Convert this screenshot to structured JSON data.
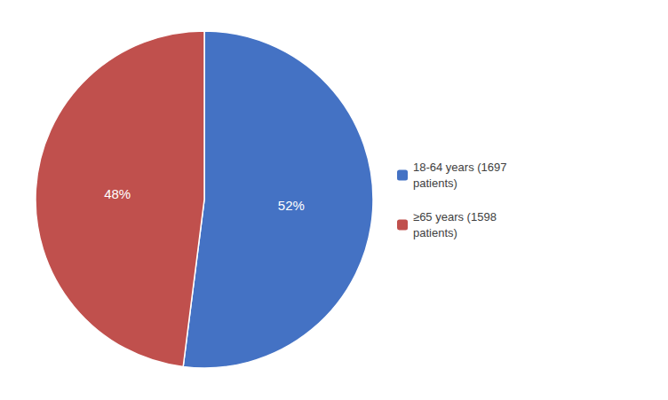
{
  "chart_data": {
    "type": "pie",
    "categories": [
      "18-64 years (1697\npatients)",
      "≥65 years (1598\npatients)"
    ],
    "values": [
      52,
      48
    ],
    "value_labels": [
      "52%",
      "48%"
    ],
    "colors": [
      "#4472C4",
      "#C0504D"
    ],
    "data_labels": true,
    "legend": "right"
  }
}
